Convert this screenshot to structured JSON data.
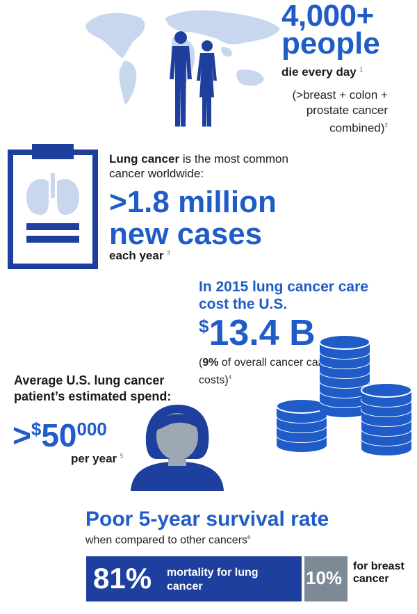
{
  "stat_deaths": {
    "number": "4,000+",
    "word": "people",
    "sub": "die every day",
    "sub_ref": "1",
    "note": "(>breast + colon + prostate cancer combined)",
    "note_ref": "2"
  },
  "stat_cases": {
    "intro_bold": "Lung cancer",
    "intro_rest": " is the most common cancer worldwide:",
    "big_line1": ">1.8 million",
    "big_line2": "new cases",
    "sub": "each year",
    "sub_ref": "3"
  },
  "stat_cost": {
    "intro": "In 2015 lung cancer care cost the U.S.",
    "dollar": "$",
    "amount": "13.4 B",
    "note_bold": "9%",
    "note_open": "(",
    "note_rest": " of overall cancer care costs)",
    "note_ref": "4"
  },
  "stat_spend": {
    "intro": "Average U.S. lung cancer patient’s estimated spend:",
    "prefix": ">",
    "dollar": "$",
    "amount": "50",
    "amount_tail": "000",
    "sub": "per year",
    "sub_ref": "5"
  },
  "survival": {
    "title": "Poor 5-year survival rate",
    "sub": "when compared to other cancers",
    "sub_ref": "6",
    "lung_pct": "81%",
    "lung_pct_value": 81,
    "lung_label": "mortality for lung cancer",
    "breast_pct": "10%",
    "breast_pct_value": 10,
    "breast_label": "for breast cancer"
  },
  "colors": {
    "brand_blue": "#1f5cc8",
    "dark_blue": "#1e3f9e",
    "map_blue": "#c9d7ee",
    "gray": "#7d8a96"
  },
  "icons": [
    "world-map-icon",
    "people-silhouette-icon",
    "clipboard-lungs-icon",
    "coin-stacks-icon",
    "patient-avatar-icon"
  ]
}
